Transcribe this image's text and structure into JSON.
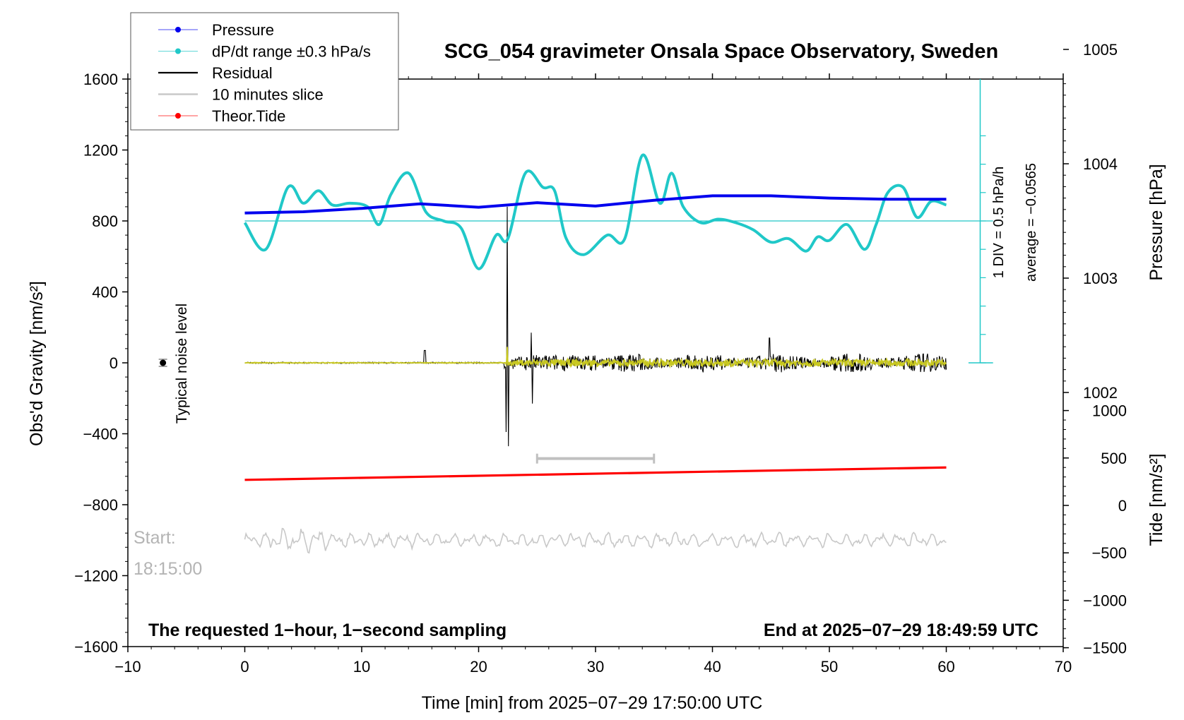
{
  "chart_data": {
    "type": "line",
    "title": "SCG_054 gravimeter Onsala Space Observatory, Sweden",
    "xlabel": "Time [min] from 2025−07−29 17:50:00 UTC",
    "ylabel_left": "Obs'd Gravity [nm/s²]",
    "ylabel_right_top": "Pressure [hPa]",
    "ylabel_right_bottom": "Tide [nm/s²]",
    "xlim": [
      -10,
      70
    ],
    "ylim": [
      -1600,
      1600
    ],
    "x_ticks": [
      "−10",
      "0",
      "10",
      "20",
      "30",
      "40",
      "50",
      "60",
      "70"
    ],
    "y_ticks_left": [
      "1600",
      "1200",
      "800",
      "400",
      "0",
      "−400",
      "−800",
      "−1200",
      "−1600"
    ],
    "pressure_axis": {
      "ticks": [
        "1005",
        "1004",
        "1003",
        "1002"
      ],
      "values": [
        1005,
        1004,
        1003,
        1002
      ]
    },
    "tide_axis": {
      "ticks": [
        "1000",
        "500",
        "0",
        "−500",
        "−1000",
        "−1500"
      ],
      "values": [
        1000,
        500,
        0,
        -500,
        -1000,
        -1500
      ]
    },
    "legend": [
      {
        "label": "Pressure",
        "color": "#0000ee"
      },
      {
        "label": "dP/dt range ±0.3 hPa/s",
        "color": "#20c8c8"
      },
      {
        "label": "Residual",
        "color": "#000000"
      },
      {
        "label": "10 minutes slice",
        "color": "#c8c8c8"
      },
      {
        "label": "Theor.Tide",
        "color": "#ff0000"
      }
    ],
    "series": [
      {
        "name": "Pressure",
        "color": "#0000ee",
        "units": "hPa",
        "x": [
          0,
          5,
          10,
          15,
          20,
          25,
          30,
          35,
          40,
          45,
          50,
          55,
          60
        ],
        "values": [
          1003.57,
          1003.58,
          1003.61,
          1003.65,
          1003.62,
          1003.66,
          1003.63,
          1003.68,
          1003.72,
          1003.72,
          1003.7,
          1003.69,
          1003.69
        ]
      },
      {
        "name": "dP/dt",
        "color": "#20c8c8",
        "units": "nm/s² display",
        "x": [
          0,
          1.8,
          3.7,
          5,
          6.3,
          7.5,
          9,
          10.5,
          11.5,
          12.5,
          14,
          15.5,
          17,
          18.5,
          20,
          21.5,
          22.5,
          24,
          25.5,
          26.5,
          27.5,
          29,
          31,
          32.5,
          34,
          35.5,
          36.5,
          37.5,
          39,
          40.5,
          42,
          43.5,
          45,
          46.5,
          48,
          49,
          50,
          51.5,
          53,
          54,
          55,
          56.3,
          57.5,
          58.7,
          60
        ],
        "values": [
          790,
          640,
          990,
          900,
          970,
          890,
          900,
          880,
          780,
          950,
          1070,
          850,
          800,
          760,
          530,
          720,
          700,
          1070,
          990,
          970,
          700,
          610,
          720,
          700,
          1170,
          900,
          1070,
          880,
          790,
          810,
          790,
          750,
          680,
          700,
          630,
          710,
          690,
          780,
          640,
          780,
          960,
          990,
          820,
          910,
          890
        ]
      },
      {
        "name": "Theor.Tide",
        "color": "#ff0000",
        "units": "nm/s² (right axis)",
        "x": [
          0,
          60
        ],
        "values": [
          270,
          400
        ]
      },
      {
        "name": "Residual",
        "color": "#000000",
        "units": "nm/s²",
        "x": [
          0,
          15.5,
          22.4,
          22.6,
          24.5,
          30,
          45,
          60
        ],
        "values": [
          0,
          60,
          880,
          -470,
          170,
          100,
          140,
          0
        ]
      }
    ],
    "slice_bar": {
      "x_start": 25,
      "x_end": 35,
      "y": -540
    },
    "noise_marker": {
      "x": -7,
      "y": 0,
      "err": 20
    },
    "pressure_scale": {
      "zero_level_y": 0,
      "div_values": [
        0,
        160,
        320,
        480,
        640,
        800,
        960,
        1120,
        1280
      ]
    },
    "annotations": {
      "noise": "Typical noise level",
      "start_label": "Start:",
      "start_time": "18:15:00",
      "pressure_scale": "1 DIV = 0.5 hPa/h",
      "average": "average = −0.0565",
      "bottom_left": "The requested 1−hour, 1−second sampling",
      "bottom_right": "End at 2025−07−29 18:49:59 UTC"
    }
  }
}
